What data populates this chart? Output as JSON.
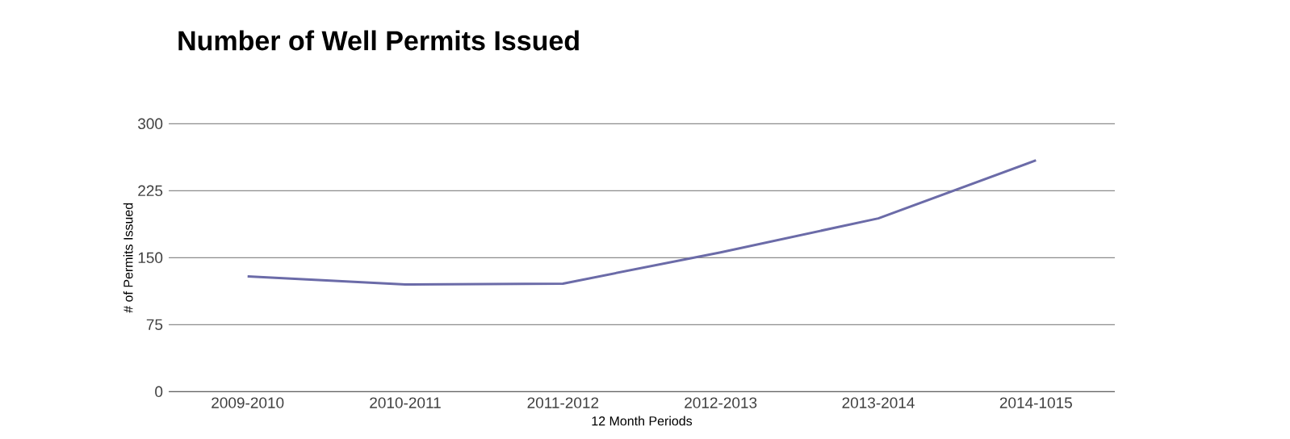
{
  "chart_data": {
    "type": "line",
    "title": "Number of Well Permits Issued",
    "xlabel": "12 Month Periods",
    "ylabel": "# of Permits Issued",
    "categories": [
      "2009-2010",
      "2010-2011",
      "2011-2012",
      "2012-2013",
      "2013-2014",
      "2014-1015"
    ],
    "series": [
      {
        "color": "#6b6ba8",
        "values": [
          129,
          120,
          121,
          156,
          194,
          259
        ]
      }
    ],
    "ylim": [
      0,
      300
    ],
    "yticks": [
      0,
      75,
      150,
      225,
      300
    ],
    "grid": "y",
    "marker": "none",
    "line_style": "solid"
  }
}
